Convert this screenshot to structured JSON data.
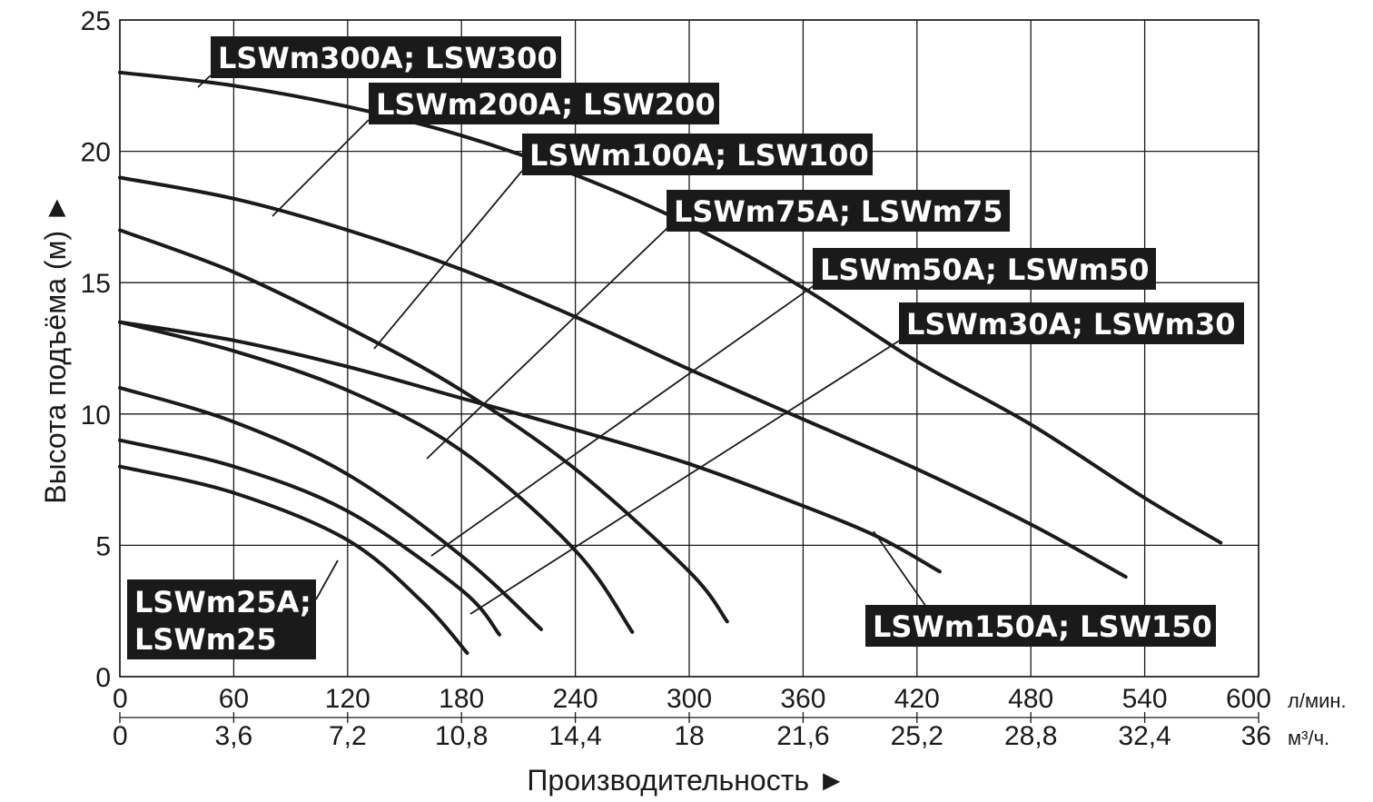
{
  "chart_data": {
    "type": "line",
    "title": "",
    "xlabel": "Производительность ►",
    "ylabel": "Высота подъёма (м) ►",
    "xlim": [
      0,
      600
    ],
    "ylim": [
      0,
      25
    ],
    "x_unit": "л/мин.",
    "x2_unit": "м³/ч.",
    "x_ticks": [
      0,
      60,
      120,
      180,
      240,
      300,
      360,
      420,
      480,
      540,
      600
    ],
    "x_tick_labels": [
      "0",
      "60",
      "120",
      "180",
      "240",
      "300",
      "360",
      "420",
      "480",
      "540",
      "600"
    ],
    "x2_tick_labels": [
      "0",
      "3,6",
      "7,2",
      "10,8",
      "14,4",
      "18",
      "21,6",
      "25,2",
      "28,8",
      "32,4",
      "36"
    ],
    "y_ticks": [
      0,
      5,
      10,
      15,
      20,
      25
    ],
    "y_tick_labels": [
      "0",
      "5",
      "10",
      "15",
      "20",
      "25"
    ],
    "grid": true,
    "series": [
      {
        "name": "LSWm300A; LSW300",
        "x": [
          0,
          60,
          120,
          180,
          240,
          300,
          360,
          420,
          480,
          540,
          580
        ],
        "y": [
          23,
          22.5,
          21.7,
          20.6,
          19.1,
          17.2,
          14.8,
          12.0,
          9.6,
          6.8,
          5.1
        ]
      },
      {
        "name": "LSWm200A; LSW200",
        "x": [
          0,
          60,
          120,
          180,
          240,
          300,
          360,
          420,
          480,
          530
        ],
        "y": [
          19,
          18.2,
          17.0,
          15.5,
          13.7,
          11.7,
          9.8,
          7.9,
          5.8,
          3.8
        ]
      },
      {
        "name": "LSWm100A; LSW100",
        "x": [
          0,
          60,
          120,
          180,
          240,
          300,
          320
        ],
        "y": [
          17,
          15.4,
          13.3,
          10.9,
          7.9,
          4.0,
          2.1
        ]
      },
      {
        "name": "LSWm75A; LSWm75",
        "x": [
          0,
          60,
          120,
          180,
          240,
          270
        ],
        "y": [
          13.5,
          12.4,
          10.9,
          8.6,
          4.8,
          1.7
        ]
      },
      {
        "name": "LSWm150A; LSW150",
        "x": [
          0,
          60,
          120,
          180,
          240,
          300,
          360,
          400,
          432
        ],
        "y": [
          13.5,
          12.8,
          11.8,
          10.6,
          9.4,
          8.1,
          6.5,
          5.3,
          4.0
        ]
      },
      {
        "name": "LSWm50A; LSWm50",
        "x": [
          0,
          60,
          120,
          180,
          222
        ],
        "y": [
          11,
          9.7,
          7.7,
          4.6,
          1.8
        ]
      },
      {
        "name": "LSWm30A; LSWm30",
        "x": [
          0,
          60,
          120,
          180,
          200
        ],
        "y": [
          9,
          8.0,
          6.3,
          3.3,
          1.6
        ]
      },
      {
        "name": "LSWm25A; LSWm25",
        "x": [
          0,
          60,
          120,
          160,
          183
        ],
        "y": [
          8,
          7.0,
          5.2,
          2.8,
          0.9
        ]
      }
    ],
    "annotations": [
      {
        "text": "LSWm300A; LSW300",
        "series": "LSWm300A; LSW300"
      },
      {
        "text": "LSWm200A; LSW200",
        "series": "LSWm200A; LSW200"
      },
      {
        "text": "LSWm100A; LSW100",
        "series": "LSWm100A; LSW100"
      },
      {
        "text": "LSWm75A; LSWm75",
        "series": "LSWm75A; LSWm75"
      },
      {
        "text": "LSWm50A; LSWm50",
        "series": "LSWm50A; LSWm50"
      },
      {
        "text": "LSWm30A; LSWm30",
        "series": "LSWm30A; LSWm30"
      },
      {
        "text": "LSWm150A; LSW150",
        "series": "LSWm150A; LSW150"
      },
      {
        "text": "LSWm25A;",
        "text2": "LSWm25",
        "series": "LSWm25A; LSWm25"
      }
    ]
  }
}
